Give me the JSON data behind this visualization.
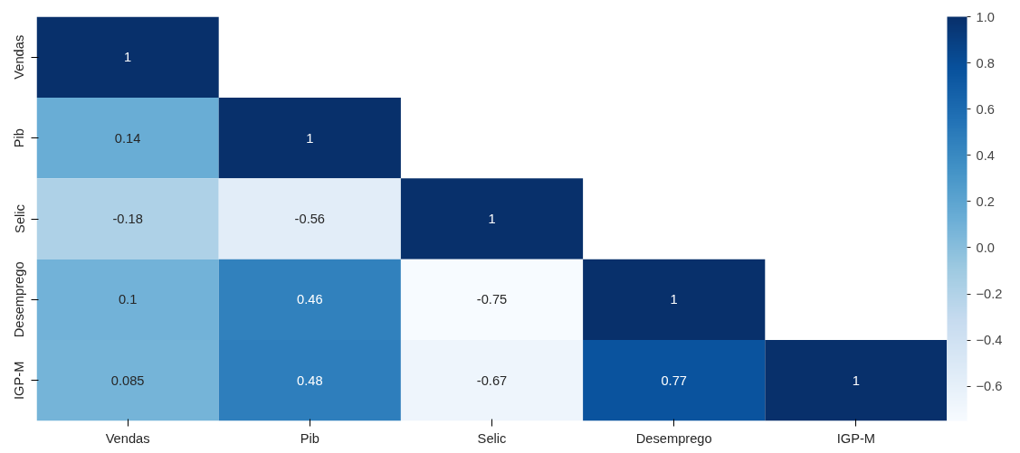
{
  "chart_data": {
    "type": "heatmap",
    "categories": [
      "Vendas",
      "Pib",
      "Selic",
      "Desemprego",
      "IGP-M"
    ],
    "y_categories": [
      "Vendas",
      "Pib",
      "Selic",
      "Desemprego",
      "IGP-M"
    ],
    "cells": [
      [
        1,
        null,
        null,
        null,
        null
      ],
      [
        0.14,
        1,
        null,
        null,
        null
      ],
      [
        -0.18,
        -0.56,
        1,
        null,
        null
      ],
      [
        0.1,
        0.46,
        -0.75,
        1,
        null
      ],
      [
        0.085,
        0.48,
        -0.67,
        0.77,
        1
      ]
    ],
    "clim": [
      -0.75,
      1
    ],
    "cticks": [
      {
        "value": -0.6,
        "label": "−0.6"
      },
      {
        "value": -0.4,
        "label": "−0.4"
      },
      {
        "value": -0.2,
        "label": "−0.2"
      },
      {
        "value": 0,
        "label": "0.0"
      },
      {
        "value": 0.2,
        "label": "0.2"
      },
      {
        "value": 0.4,
        "label": "0.4"
      },
      {
        "value": 0.6,
        "label": "0.6"
      },
      {
        "value": 0.8,
        "label": "0.8"
      },
      {
        "value": 1,
        "label": "1.0"
      }
    ],
    "data_labels": true
  }
}
